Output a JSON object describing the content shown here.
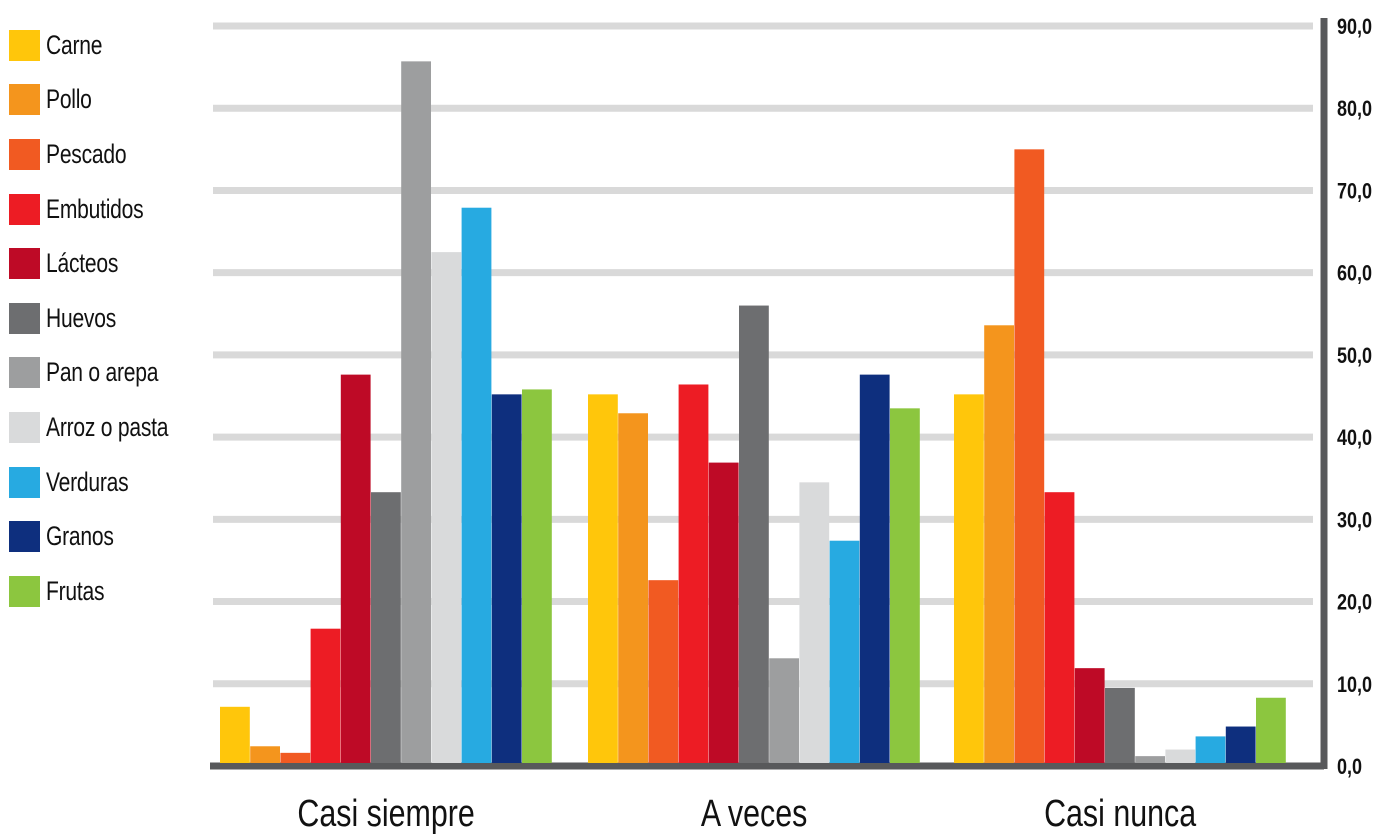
{
  "chart_data": {
    "type": "bar",
    "categories": [
      "Casi siempre",
      "A veces",
      "Casi nunca"
    ],
    "series": [
      {
        "name": "Carne",
        "color": "#FFC60B",
        "values": [
          7.2,
          45.2,
          45.2
        ]
      },
      {
        "name": "Pollo",
        "color": "#F4951D",
        "values": [
          2.4,
          42.9,
          53.6
        ]
      },
      {
        "name": "Pescado",
        "color": "#F15A22",
        "values": [
          1.6,
          22.6,
          75.0
        ]
      },
      {
        "name": "Embutidos",
        "color": "#ED1C24",
        "values": [
          16.7,
          46.4,
          33.3
        ]
      },
      {
        "name": "Lácteos",
        "color": "#BE0A26",
        "values": [
          47.6,
          36.9,
          11.9
        ]
      },
      {
        "name": "Huevos",
        "color": "#6D6E70",
        "values": [
          33.3,
          56.0,
          9.5
        ]
      },
      {
        "name": "Pan o arepa",
        "color": "#9D9E9F",
        "values": [
          85.7,
          13.1,
          1.2
        ]
      },
      {
        "name": "Arroz o pasta",
        "color": "#D9DADB",
        "values": [
          62.5,
          34.5,
          2.0
        ]
      },
      {
        "name": "Verduras",
        "color": "#27AAE1",
        "values": [
          67.9,
          27.4,
          3.6
        ]
      },
      {
        "name": "Granos",
        "color": "#0E2F7E",
        "values": [
          45.2,
          47.6,
          4.8
        ]
      },
      {
        "name": "Frutas",
        "color": "#8CC63F",
        "values": [
          45.8,
          43.5,
          8.3
        ]
      }
    ],
    "yticks": [
      "0,0",
      "10,0",
      "20,0",
      "30,0",
      "40,0",
      "50,0",
      "60,0",
      "70,0",
      "80,0",
      "90,0"
    ],
    "ylim": [
      0,
      90
    ],
    "grid": true,
    "legend_position": "left",
    "axis_position": "right",
    "colors": {
      "grid": "#D9D9D9",
      "axis": "#58595B",
      "text": "#111111"
    }
  }
}
